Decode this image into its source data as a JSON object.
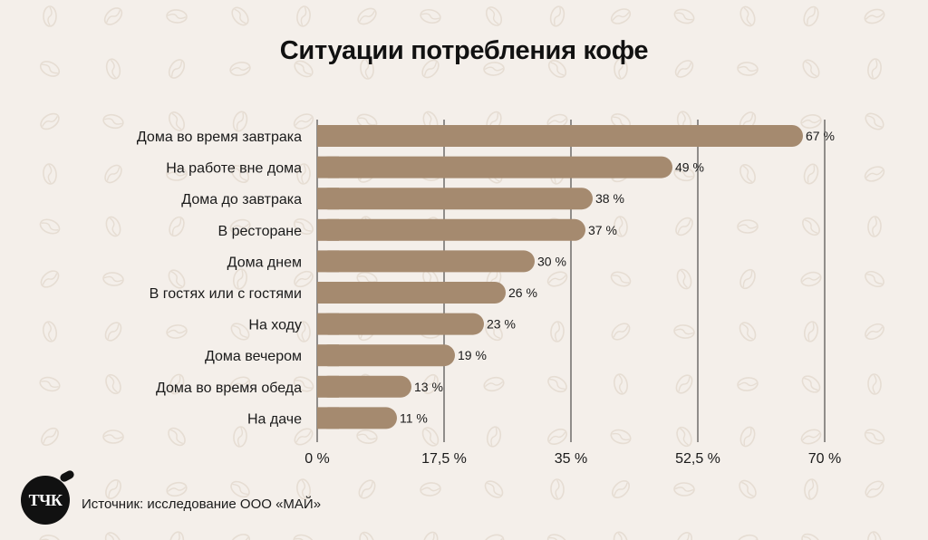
{
  "title": "Ситуации потребления кофе",
  "source": "Источник: исследование ООО «МАЙ»",
  "logo_text": "ТЧК",
  "colors": {
    "background": "#f4efea",
    "bar": "#a58a6f",
    "pattern": "#e6ddd3",
    "gridline": "#2b2b2b",
    "text": "#1a1a1a"
  },
  "chart_data": {
    "type": "bar",
    "orientation": "horizontal",
    "title": "Ситуации потребления кофе",
    "categories": [
      "Дома во время завтрака",
      "На работе вне дома",
      "Дома до завтрака",
      "В ресторане",
      "Дома днем",
      "В гостях или с гостями",
      "На ходу",
      "Дома вечером",
      "Дома во время обеда",
      "На даче"
    ],
    "values": [
      67,
      49,
      38,
      37,
      30,
      26,
      23,
      19,
      13,
      11
    ],
    "value_labels": [
      "67 %",
      "49 %",
      "38 %",
      "37 %",
      "30 %",
      "26 %",
      "23 %",
      "19 %",
      "13 %",
      "11 %"
    ],
    "x_ticks": [
      0,
      17.5,
      35,
      52.5,
      70
    ],
    "x_tick_labels": [
      "0 %",
      "17,5 %",
      "35 %",
      "52,5 %",
      "70 %"
    ],
    "xlim": [
      0,
      70
    ],
    "xlabel": "",
    "ylabel": "",
    "grid": "vertical",
    "legend": "none"
  }
}
